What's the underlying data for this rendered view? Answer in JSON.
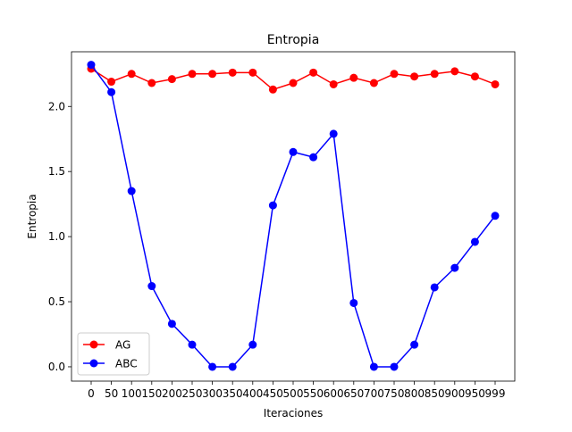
{
  "chart_data": {
    "type": "line",
    "title": "Entropia",
    "xlabel": "Iteraciones",
    "ylabel": "Entropia",
    "x": [
      "0",
      "50",
      "100",
      "150",
      "200",
      "250",
      "300",
      "350",
      "400",
      "450",
      "500",
      "550",
      "600",
      "650",
      "700",
      "750",
      "800",
      "850",
      "900",
      "950",
      "999"
    ],
    "ylim": [
      -0.11,
      2.42
    ],
    "yticks": [
      "0.0",
      "0.5",
      "1.0",
      "1.5",
      "2.0"
    ],
    "grid": false,
    "legend_position": "bottom-left",
    "series": [
      {
        "name": "AG",
        "color": "#ff0000",
        "values": [
          2.29,
          2.19,
          2.25,
          2.18,
          2.21,
          2.25,
          2.25,
          2.26,
          2.26,
          2.13,
          2.18,
          2.26,
          2.17,
          2.22,
          2.18,
          2.25,
          2.23,
          2.25,
          2.27,
          2.23,
          2.17
        ]
      },
      {
        "name": "ABC",
        "color": "#0000ff",
        "values": [
          2.32,
          2.11,
          1.35,
          0.62,
          0.33,
          0.17,
          0.0,
          0.0,
          0.17,
          1.24,
          1.65,
          1.61,
          1.79,
          0.49,
          0.0,
          0.0,
          0.17,
          0.61,
          0.76,
          0.96,
          1.16
        ]
      }
    ]
  }
}
